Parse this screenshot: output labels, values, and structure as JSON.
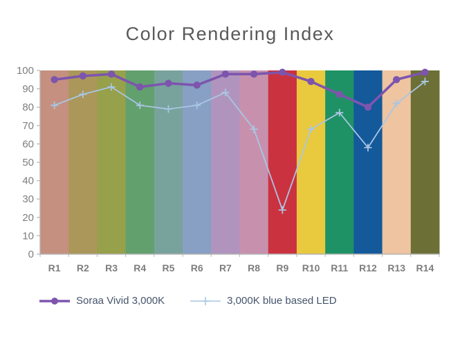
{
  "title": "Color Rendering Index",
  "chart_data": {
    "type": "line",
    "title": "Color Rendering Index",
    "categories": [
      "R1",
      "R2",
      "R3",
      "R4",
      "R5",
      "R6",
      "R7",
      "R8",
      "R9",
      "R10",
      "R11",
      "R12",
      "R13",
      "R14"
    ],
    "xlabel": "",
    "ylabel": "",
    "ylim": [
      0,
      100
    ],
    "yticks": [
      0,
      10,
      20,
      30,
      40,
      50,
      60,
      70,
      80,
      90,
      100
    ],
    "grid": false,
    "legend_position": "bottom-left",
    "band_colors": [
      "#c5907f",
      "#ab9759",
      "#97a04b",
      "#62a06e",
      "#78a39c",
      "#87a0c3",
      "#b194bd",
      "#c791ae",
      "#cb3240",
      "#e9c93e",
      "#1f9265",
      "#14599a",
      "#efc4a1",
      "#6c7037"
    ],
    "series": [
      {
        "name": "Soraa Vivid 3,000K",
        "color": "#7d55ad",
        "marker": "circle",
        "values": [
          95,
          97,
          98,
          91,
          93,
          92,
          98,
          98,
          99,
          94,
          87,
          80,
          95,
          99
        ]
      },
      {
        "name": "3,000K blue based LED",
        "color": "#a9c6e3",
        "marker": "plus",
        "values": [
          81,
          87,
          91,
          81,
          79,
          81,
          88,
          68,
          24,
          68,
          77,
          58,
          82,
          94
        ]
      }
    ],
    "colors": {
      "title": "#595959",
      "tick_label": "#7d7d7d",
      "axis_line": "#b3b3b3",
      "legend_text": "#44546a",
      "background": "#ffffff"
    }
  }
}
